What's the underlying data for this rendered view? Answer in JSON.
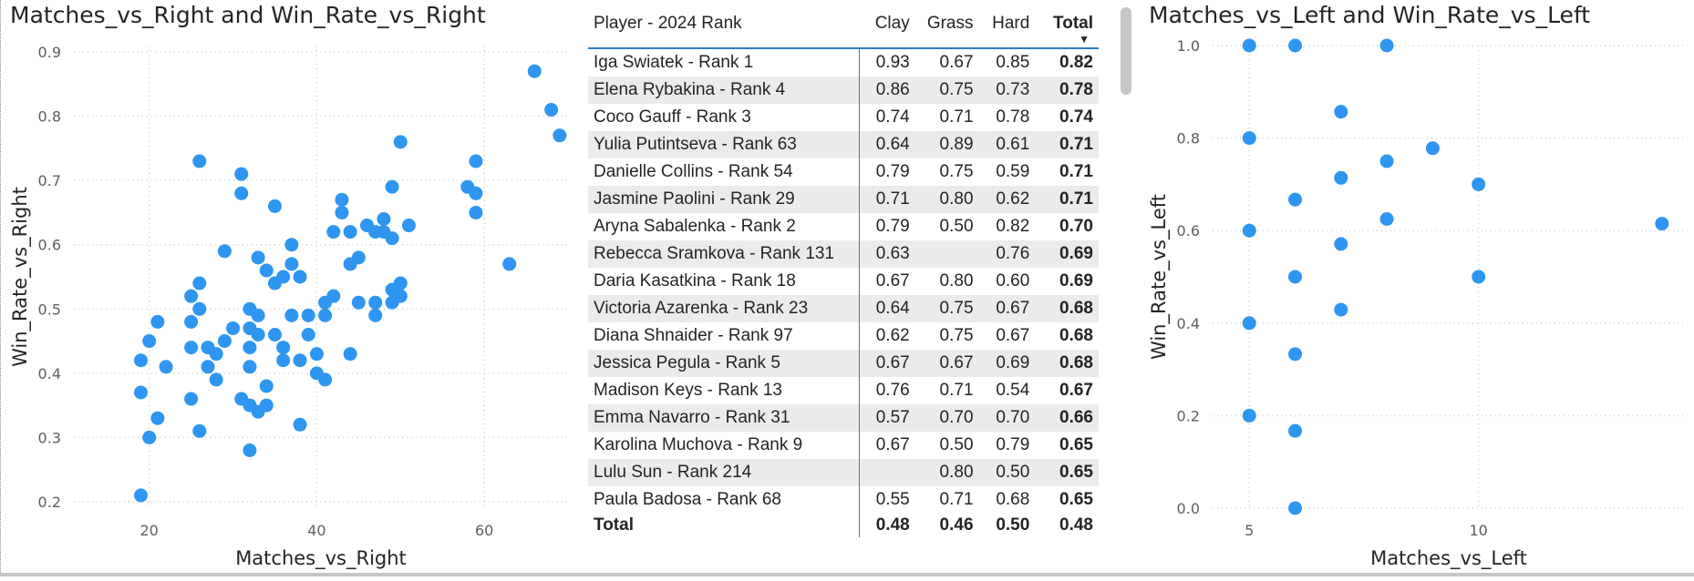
{
  "left_chart": {
    "title": "Matches_vs_Right and Win_Rate_vs_Right",
    "xlabel": "Matches_vs_Right",
    "ylabel": "Win_Rate_vs_Right"
  },
  "right_chart": {
    "title": "Matches_vs_Left and Win_Rate_vs_Left",
    "xlabel": "Matches_vs_Left",
    "ylabel": "Win_Rate_vs_Left"
  },
  "table": {
    "headers": {
      "player": "Player - 2024 Rank",
      "clay": "Clay",
      "grass": "Grass",
      "hard": "Hard",
      "total": "Total"
    },
    "sort_indicator": "▼",
    "rows": [
      {
        "player": "Iga Swiatek - Rank 1",
        "clay": "0.93",
        "grass": "0.67",
        "hard": "0.85",
        "total": "0.82"
      },
      {
        "player": "Elena Rybakina - Rank 4",
        "clay": "0.86",
        "grass": "0.75",
        "hard": "0.73",
        "total": "0.78"
      },
      {
        "player": "Coco Gauff - Rank 3",
        "clay": "0.74",
        "grass": "0.71",
        "hard": "0.78",
        "total": "0.74"
      },
      {
        "player": "Yulia Putintseva - Rank 63",
        "clay": "0.64",
        "grass": "0.89",
        "hard": "0.61",
        "total": "0.71"
      },
      {
        "player": "Danielle Collins - Rank 54",
        "clay": "0.79",
        "grass": "0.75",
        "hard": "0.59",
        "total": "0.71"
      },
      {
        "player": "Jasmine Paolini - Rank 29",
        "clay": "0.71",
        "grass": "0.80",
        "hard": "0.62",
        "total": "0.71"
      },
      {
        "player": "Aryna Sabalenka - Rank 2",
        "clay": "0.79",
        "grass": "0.50",
        "hard": "0.82",
        "total": "0.70"
      },
      {
        "player": "Rebecca Sramkova - Rank 131",
        "clay": "0.63",
        "grass": "",
        "hard": "0.76",
        "total": "0.69"
      },
      {
        "player": "Daria Kasatkina - Rank 18",
        "clay": "0.67",
        "grass": "0.80",
        "hard": "0.60",
        "total": "0.69"
      },
      {
        "player": "Victoria Azarenka - Rank 23",
        "clay": "0.64",
        "grass": "0.75",
        "hard": "0.67",
        "total": "0.68"
      },
      {
        "player": "Diana Shnaider - Rank 97",
        "clay": "0.62",
        "grass": "0.75",
        "hard": "0.67",
        "total": "0.68"
      },
      {
        "player": "Jessica Pegula - Rank 5",
        "clay": "0.67",
        "grass": "0.67",
        "hard": "0.69",
        "total": "0.68"
      },
      {
        "player": "Madison Keys - Rank 13",
        "clay": "0.76",
        "grass": "0.71",
        "hard": "0.54",
        "total": "0.67"
      },
      {
        "player": "Emma Navarro - Rank 31",
        "clay": "0.57",
        "grass": "0.70",
        "hard": "0.70",
        "total": "0.66"
      },
      {
        "player": "Karolina Muchova - Rank 9",
        "clay": "0.67",
        "grass": "0.50",
        "hard": "0.79",
        "total": "0.65"
      },
      {
        "player": "Lulu Sun - Rank 214",
        "clay": "",
        "grass": "0.80",
        "hard": "0.50",
        "total": "0.65"
      },
      {
        "player": "Paula Badosa - Rank 68",
        "clay": "0.55",
        "grass": "0.71",
        "hard": "0.68",
        "total": "0.65"
      }
    ],
    "totals": {
      "label": "Total",
      "clay": "0.48",
      "grass": "0.46",
      "hard": "0.50",
      "total": "0.48"
    }
  },
  "chart_data": [
    {
      "type": "scatter",
      "title": "Matches_vs_Right and Win_Rate_vs_Right",
      "xlabel": "Matches_vs_Right",
      "ylabel": "Win_Rate_vs_Right",
      "xlim": [
        11,
        70
      ],
      "ylim": [
        0.19,
        0.91
      ],
      "xticks": [
        20,
        40,
        60
      ],
      "yticks": [
        0.2,
        0.3,
        0.4,
        0.5,
        0.6,
        0.7,
        0.8,
        0.9
      ],
      "grid": true,
      "color": "#2E96F0",
      "points": [
        [
          19,
          0.21
        ],
        [
          19,
          0.37
        ],
        [
          19,
          0.42
        ],
        [
          20,
          0.45
        ],
        [
          20,
          0.3
        ],
        [
          21,
          0.48
        ],
        [
          21,
          0.33
        ],
        [
          22,
          0.41
        ],
        [
          25,
          0.52
        ],
        [
          25,
          0.48
        ],
        [
          25,
          0.44
        ],
        [
          25,
          0.36
        ],
        [
          26,
          0.73
        ],
        [
          26,
          0.54
        ],
        [
          26,
          0.5
        ],
        [
          26,
          0.31
        ],
        [
          27,
          0.44
        ],
        [
          27,
          0.41
        ],
        [
          28,
          0.43
        ],
        [
          28,
          0.39
        ],
        [
          29,
          0.59
        ],
        [
          29,
          0.45
        ],
        [
          30,
          0.47
        ],
        [
          31,
          0.71
        ],
        [
          31,
          0.68
        ],
        [
          31,
          0.36
        ],
        [
          32,
          0.5
        ],
        [
          32,
          0.47
        ],
        [
          32,
          0.44
        ],
        [
          32,
          0.41
        ],
        [
          32,
          0.35
        ],
        [
          32,
          0.28
        ],
        [
          33,
          0.58
        ],
        [
          33,
          0.49
        ],
        [
          33,
          0.46
        ],
        [
          33,
          0.34
        ],
        [
          34,
          0.56
        ],
        [
          34,
          0.38
        ],
        [
          34,
          0.35
        ],
        [
          35,
          0.66
        ],
        [
          35,
          0.54
        ],
        [
          35,
          0.46
        ],
        [
          36,
          0.55
        ],
        [
          36,
          0.44
        ],
        [
          36,
          0.42
        ],
        [
          37,
          0.6
        ],
        [
          37,
          0.57
        ],
        [
          37,
          0.49
        ],
        [
          38,
          0.55
        ],
        [
          38,
          0.42
        ],
        [
          38,
          0.32
        ],
        [
          39,
          0.49
        ],
        [
          39,
          0.46
        ],
        [
          40,
          0.43
        ],
        [
          40,
          0.4
        ],
        [
          41,
          0.51
        ],
        [
          41,
          0.49
        ],
        [
          41,
          0.39
        ],
        [
          42,
          0.62
        ],
        [
          42,
          0.52
        ],
        [
          43,
          0.67
        ],
        [
          43,
          0.65
        ],
        [
          44,
          0.62
        ],
        [
          44,
          0.57
        ],
        [
          44,
          0.43
        ],
        [
          45,
          0.58
        ],
        [
          45,
          0.51
        ],
        [
          46,
          0.63
        ],
        [
          47,
          0.62
        ],
        [
          47,
          0.51
        ],
        [
          47,
          0.49
        ],
        [
          48,
          0.64
        ],
        [
          48,
          0.62
        ],
        [
          49,
          0.69
        ],
        [
          49,
          0.61
        ],
        [
          49,
          0.53
        ],
        [
          49,
          0.51
        ],
        [
          50,
          0.76
        ],
        [
          50,
          0.54
        ],
        [
          50,
          0.52
        ],
        [
          51,
          0.63
        ],
        [
          58,
          0.69
        ],
        [
          59,
          0.73
        ],
        [
          59,
          0.68
        ],
        [
          59,
          0.65
        ],
        [
          63,
          0.57
        ],
        [
          66,
          0.87
        ],
        [
          68,
          0.81
        ],
        [
          69,
          0.77
        ]
      ]
    },
    {
      "type": "scatter",
      "title": "Matches_vs_Left and Win_Rate_vs_Left",
      "xlabel": "Matches_vs_Left",
      "ylabel": "Win_Rate_vs_Left",
      "xlim": [
        4.2,
        14.5
      ],
      "ylim": [
        0,
        1
      ],
      "xticks": [
        5,
        10
      ],
      "yticks": [
        0.0,
        0.2,
        0.4,
        0.6,
        0.8,
        1.0
      ],
      "grid": true,
      "color": "#2E96F0",
      "points": [
        [
          5,
          1.0
        ],
        [
          5,
          0.8
        ],
        [
          5,
          0.6
        ],
        [
          5,
          0.4
        ],
        [
          5,
          0.2
        ],
        [
          6,
          1.0
        ],
        [
          6,
          0.667
        ],
        [
          6,
          0.5
        ],
        [
          6,
          0.333
        ],
        [
          6,
          0.167
        ],
        [
          6,
          0.0
        ],
        [
          7,
          0.857
        ],
        [
          7,
          0.714
        ],
        [
          7,
          0.571
        ],
        [
          7,
          0.429
        ],
        [
          8,
          1.0
        ],
        [
          8,
          0.75
        ],
        [
          8,
          0.625
        ],
        [
          9,
          0.778
        ],
        [
          10,
          0.7
        ],
        [
          10,
          0.5
        ],
        [
          14,
          0.615
        ]
      ]
    }
  ]
}
